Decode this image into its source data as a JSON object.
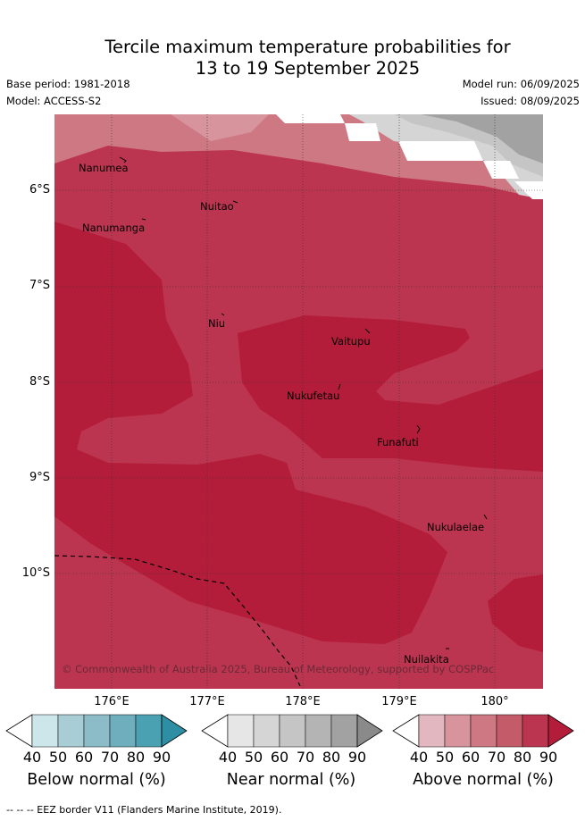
{
  "title_line1": "Tercile maximum temperature probabilities for",
  "title_line2": "13 to 19 September 2025",
  "base_period": "Base period: 1981-2018",
  "model": "Model: ACCESS-S2",
  "model_run": "Model run: 06/09/2025",
  "issued": "Issued: 08/09/2025",
  "map": {
    "lat_labels": [
      "6°S",
      "7°S",
      "8°S",
      "9°S",
      "10°S"
    ],
    "lon_labels": [
      "176°E",
      "177°E",
      "178°E",
      "179°E",
      "180°"
    ],
    "places": [
      "Nanumea",
      "Nuitao",
      "Nanumanga",
      "Niu",
      "Vaitupu",
      "Nukufetau",
      "Funafuti",
      "Nukulaelae",
      "Nuilakita"
    ],
    "copyright": "© Commonwealth of Australia 2025, Bureau of Meteorology, supported by COSPPac"
  },
  "colorbars": [
    {
      "label": "Below normal (%)",
      "ticks": [
        "40",
        "50",
        "60",
        "70",
        "80",
        "90"
      ],
      "colors": [
        "#cde6ea",
        "#a9cdd4",
        "#8bbcc8",
        "#6eaebd",
        "#4aa1b1",
        "#2e8ea3"
      ]
    },
    {
      "label": "Near normal (%)",
      "ticks": [
        "40",
        "50",
        "60",
        "70",
        "80",
        "90"
      ],
      "colors": [
        "#e6e6e6",
        "#d5d5d5",
        "#c5c5c5",
        "#b4b4b4",
        "#a2a2a2",
        "#8a8a8a"
      ]
    },
    {
      "label": "Above normal (%)",
      "ticks": [
        "40",
        "50",
        "60",
        "70",
        "80",
        "90"
      ],
      "colors": [
        "#e2b7bf",
        "#d7949c",
        "#cd7882",
        "#c45b68",
        "#bc3550",
        "#b31d3a"
      ]
    }
  ],
  "footer": "--  --  -- EEZ border V11 (Flanders Marine Institute, 2019)."
}
